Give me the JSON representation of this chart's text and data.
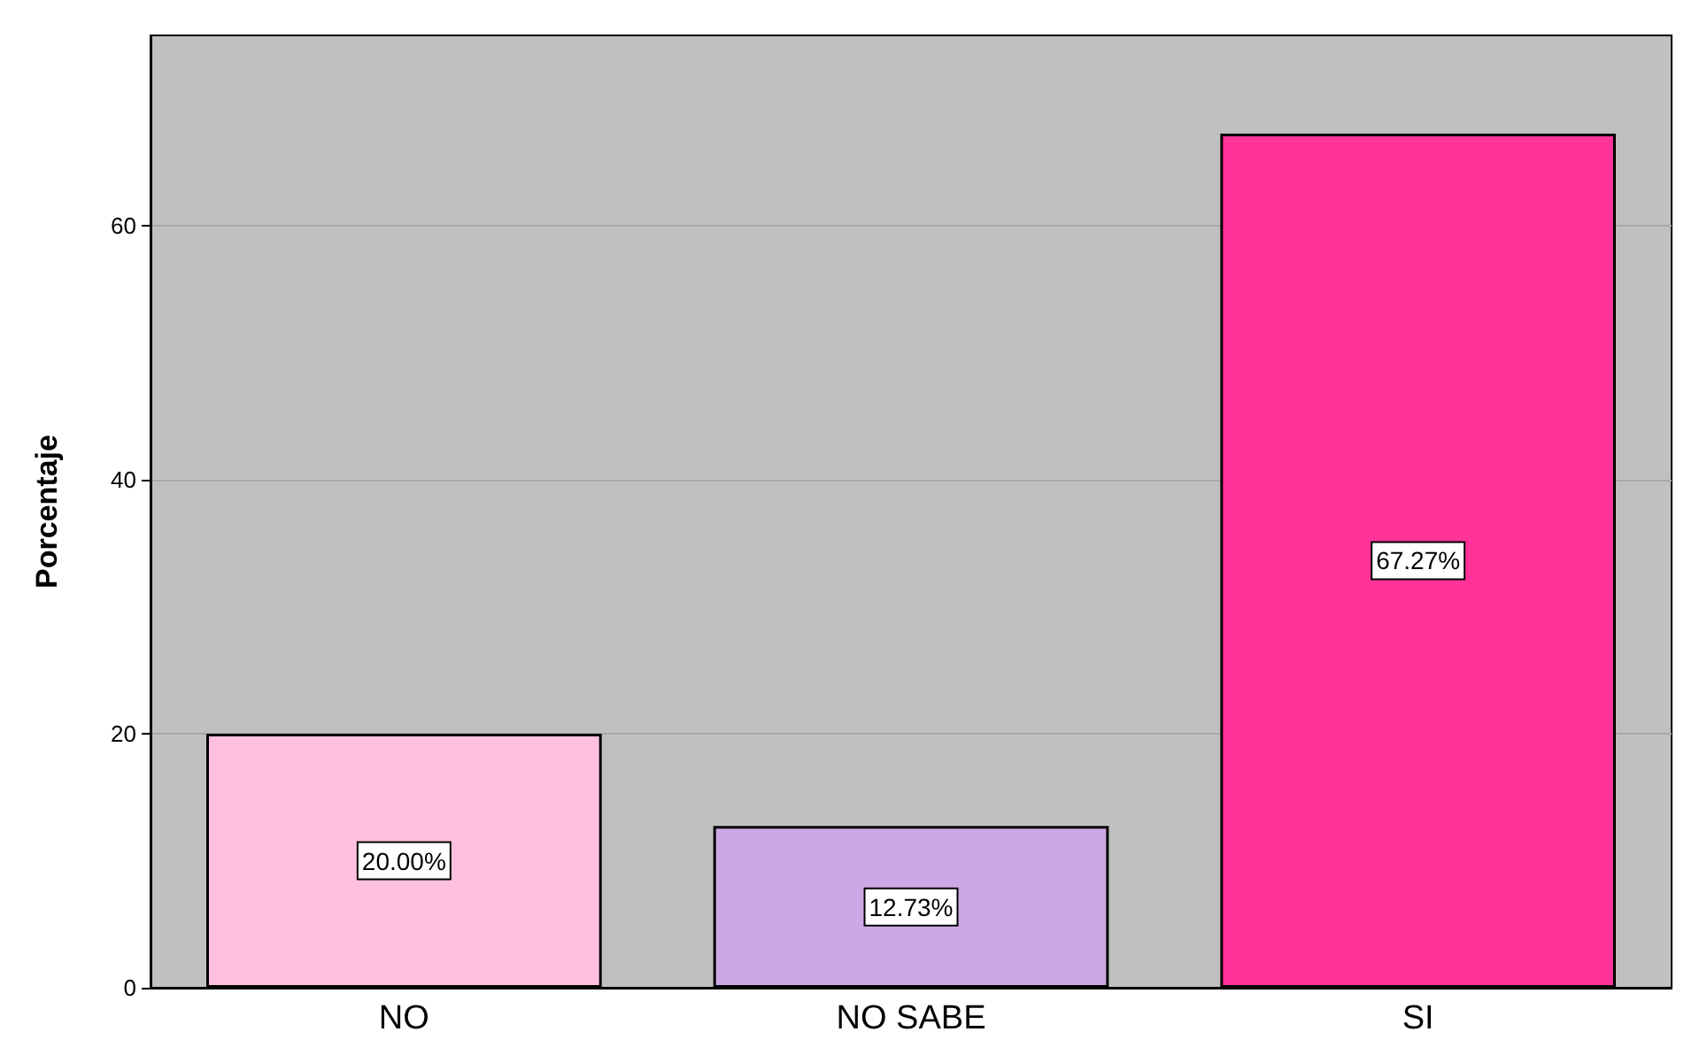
{
  "chart_data": {
    "type": "bar",
    "ylabel": "Porcentaje",
    "categories": [
      "NO",
      "NO SABE",
      "SI"
    ],
    "values": [
      20.0,
      12.73,
      67.27
    ],
    "colors": [
      "#ffc0e0",
      "#cca8e4",
      "#ff3399"
    ],
    "value_labels": [
      "20.00%",
      "12.73%",
      "67.27%"
    ],
    "ylim": [
      0,
      75
    ],
    "yticks": [
      0,
      20,
      40,
      60
    ],
    "grid": "y"
  }
}
